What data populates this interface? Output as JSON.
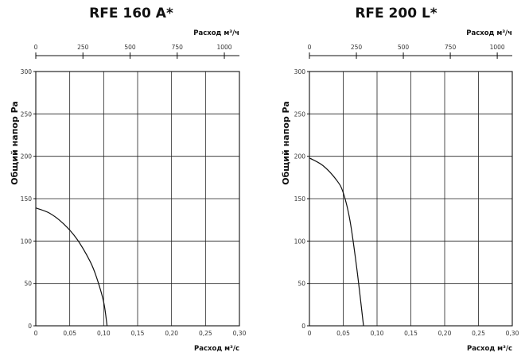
{
  "chart_data": [
    {
      "type": "line",
      "title": "RFE 160 A*",
      "ylabel": "Общий напор Pa",
      "xlabel": "Расход м³/с",
      "x2label": "Расход м³/ч",
      "xlim": [
        0,
        0.3
      ],
      "ylim": [
        0,
        300
      ],
      "x2lim": [
        0,
        1080
      ],
      "x_ticks": [
        "0",
        "0,05",
        "0,10",
        "0,15",
        "0,20",
        "0,25",
        "0,30"
      ],
      "y_ticks": [
        "0",
        "50",
        "100",
        "150",
        "200",
        "250",
        "300"
      ],
      "x2_ticks": [
        "0",
        "250",
        "500",
        "750",
        "1000"
      ],
      "x2_tick_values": [
        0,
        250,
        500,
        750,
        1000
      ],
      "grid": true,
      "series": [
        {
          "x": [
            0,
            0.02,
            0.04,
            0.06,
            0.08,
            0.09,
            0.1,
            0.105
          ],
          "y": [
            139,
            133,
            121,
            103,
            76,
            56,
            28,
            0
          ]
        }
      ]
    },
    {
      "type": "line",
      "title": "RFE 200 L*",
      "ylabel": "Общий напор Pa",
      "xlabel": "Расход м³/с",
      "x2label": "Расход м³/ч",
      "xlim": [
        0,
        0.3
      ],
      "ylim": [
        0,
        300
      ],
      "x2lim": [
        0,
        1080
      ],
      "x_ticks": [
        "0",
        "0,05",
        "0,10",
        "0,15",
        "0,20",
        "0,25",
        "0,30"
      ],
      "y_ticks": [
        "0",
        "50",
        "100",
        "150",
        "200",
        "250",
        "300"
      ],
      "x2_ticks": [
        "0",
        "250",
        "500",
        "750",
        "1000"
      ],
      "x2_tick_values": [
        0,
        250,
        500,
        750,
        1000
      ],
      "grid": true,
      "series": [
        {
          "x": [
            0,
            0.02,
            0.04,
            0.05,
            0.06,
            0.07,
            0.08
          ],
          "y": [
            198,
            189,
            172,
            157,
            124,
            68,
            0
          ]
        }
      ]
    }
  ]
}
